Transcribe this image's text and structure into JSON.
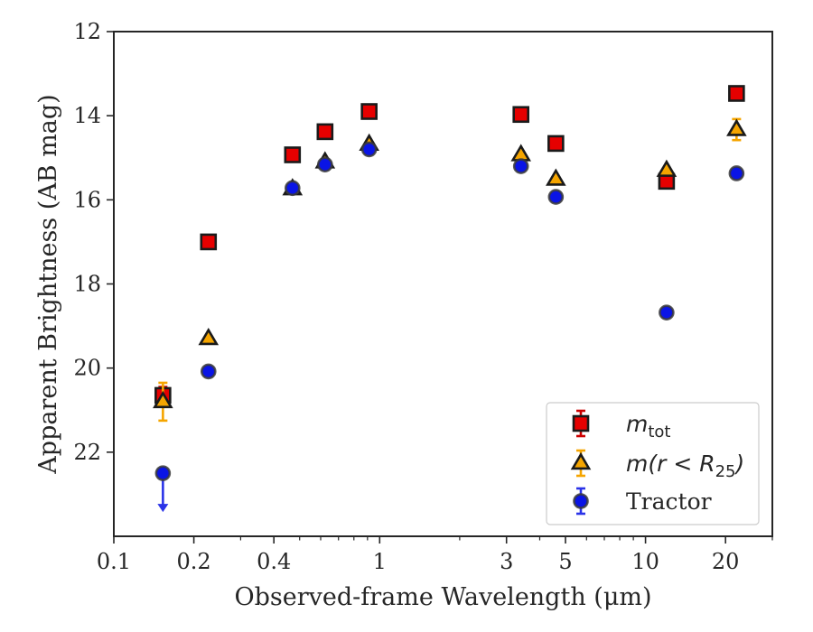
{
  "chart_data": {
    "type": "scatter",
    "xlabel": "Observed-frame Wavelength (μm)",
    "ylabel": "Apparent Brightness (AB mag)",
    "xscale": "log",
    "xlim": [
      0.1,
      30
    ],
    "ylim": [
      24,
      12
    ],
    "y_inverted": true,
    "xticks": [
      0.1,
      0.2,
      0.4,
      1,
      3,
      5,
      10,
      20
    ],
    "xtick_labels": [
      "0.1",
      "0.2",
      "0.4",
      "1",
      "3",
      "5",
      "10",
      "20"
    ],
    "yticks": [
      12,
      14,
      16,
      18,
      20,
      22
    ],
    "ytick_labels": [
      "12",
      "14",
      "16",
      "18",
      "20",
      "22"
    ],
    "legend_position": "lower right",
    "series": [
      {
        "name": "m_tot",
        "marker": "square",
        "color": "#e60000",
        "edgecolor": "#1a1a1a",
        "errcolor": "#cc0000",
        "points": [
          {
            "x": 0.153,
            "y": 20.65,
            "err": 0.2
          },
          {
            "x": 0.227,
            "y": 17.0,
            "err": 0.05
          },
          {
            "x": 0.47,
            "y": 14.93,
            "err": 0.03
          },
          {
            "x": 0.623,
            "y": 14.38,
            "err": 0.03
          },
          {
            "x": 0.913,
            "y": 13.9,
            "err": 0.03
          },
          {
            "x": 3.4,
            "y": 13.97,
            "err": 0.03
          },
          {
            "x": 4.6,
            "y": 14.66,
            "err": 0.03
          },
          {
            "x": 12.0,
            "y": 15.56,
            "err": 0.05
          },
          {
            "x": 22.0,
            "y": 13.47,
            "err": 0.05
          }
        ]
      },
      {
        "name": "m(r < R25)",
        "marker": "triangle",
        "color": "#f5a500",
        "edgecolor": "#1a1a1a",
        "errcolor": "#f5a500",
        "points": [
          {
            "x": 0.153,
            "y": 20.8,
            "err": 0.45
          },
          {
            "x": 0.227,
            "y": 19.3,
            "err": 0.05
          },
          {
            "x": 0.47,
            "y": 15.74,
            "err": 0.03
          },
          {
            "x": 0.623,
            "y": 15.1,
            "err": 0.03
          },
          {
            "x": 0.913,
            "y": 14.68,
            "err": 0.03
          },
          {
            "x": 3.4,
            "y": 14.93,
            "err": 0.03
          },
          {
            "x": 4.6,
            "y": 15.51,
            "err": 0.03
          },
          {
            "x": 12.0,
            "y": 15.3,
            "err": 0.05
          },
          {
            "x": 22.0,
            "y": 14.33,
            "err": 0.25
          }
        ]
      },
      {
        "name": "Tractor",
        "marker": "circle",
        "color": "#0a14e6",
        "edgecolor": "#3a3a3a",
        "errcolor": "#2a33e8",
        "points": [
          {
            "x": 0.153,
            "y": 22.5,
            "err": 0,
            "upper_limit": true
          },
          {
            "x": 0.227,
            "y": 20.08,
            "err": 0.03
          },
          {
            "x": 0.47,
            "y": 15.72,
            "err": 0.03
          },
          {
            "x": 0.623,
            "y": 15.16,
            "err": 0.03
          },
          {
            "x": 0.913,
            "y": 14.8,
            "err": 0.03
          },
          {
            "x": 3.4,
            "y": 15.2,
            "err": 0.03
          },
          {
            "x": 4.6,
            "y": 15.93,
            "err": 0.03
          },
          {
            "x": 12.0,
            "y": 18.68,
            "err": 0.05
          },
          {
            "x": 22.0,
            "y": 15.37,
            "err": 0.05
          }
        ]
      }
    ],
    "legend": [
      {
        "label_main": "m",
        "label_sub": "tot"
      },
      {
        "label_main": "m(r < R",
        "label_sub": "25",
        "label_tail": ")"
      },
      {
        "label_main": "Tractor"
      }
    ]
  }
}
